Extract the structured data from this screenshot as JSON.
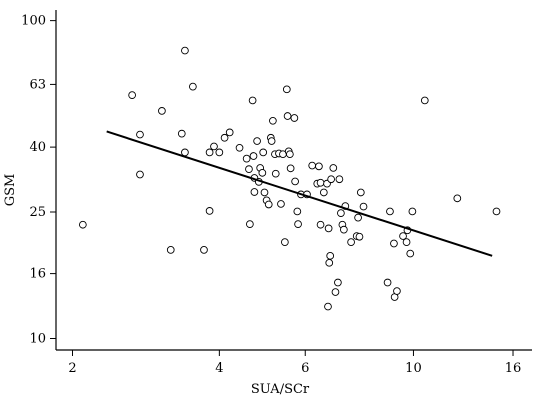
{
  "chart_data": {
    "type": "scatter",
    "xlabel": "SUA/SCr",
    "ylabel": "GSM",
    "x_scale": "log",
    "y_scale": "log",
    "xlim": [
      1.85,
      17.5
    ],
    "ylim": [
      9.2,
      108
    ],
    "x_ticks": [
      2,
      4,
      6,
      10,
      16
    ],
    "x_tick_labels": [
      "2",
      "4",
      "6",
      "10",
      "16"
    ],
    "y_ticks": [
      10,
      16,
      25,
      40,
      63,
      100
    ],
    "y_tick_labels": [
      "10",
      "16",
      "25",
      "40",
      "63",
      "100"
    ],
    "grid": false,
    "legend": "none",
    "series": [
      {
        "points": [
          [
            2.1,
            22.8
          ],
          [
            2.65,
            58.3
          ],
          [
            2.75,
            43.8
          ],
          [
            2.75,
            32.8
          ],
          [
            3.05,
            52.0
          ],
          [
            3.18,
            19.0
          ],
          [
            3.35,
            44.1
          ],
          [
            3.4,
            80.5
          ],
          [
            3.4,
            38.5
          ],
          [
            3.53,
            62.0
          ],
          [
            3.72,
            19.0
          ],
          [
            3.82,
            38.5
          ],
          [
            3.82,
            25.2
          ],
          [
            3.9,
            40.2
          ],
          [
            4.0,
            38.5
          ],
          [
            4.1,
            42.8
          ],
          [
            4.2,
            44.5
          ],
          [
            4.4,
            39.8
          ],
          [
            4.55,
            36.8
          ],
          [
            4.6,
            34.1
          ],
          [
            4.62,
            22.9
          ],
          [
            4.68,
            56.1
          ],
          [
            4.7,
            37.5
          ],
          [
            4.72,
            32.0
          ],
          [
            4.72,
            28.9
          ],
          [
            4.78,
            41.8
          ],
          [
            4.82,
            31.1
          ],
          [
            4.85,
            34.4
          ],
          [
            4.9,
            33.2
          ],
          [
            4.92,
            38.5
          ],
          [
            4.95,
            28.8
          ],
          [
            5.0,
            27.2
          ],
          [
            5.05,
            26.4
          ],
          [
            5.1,
            42.8
          ],
          [
            5.12,
            41.8
          ],
          [
            5.15,
            48.4
          ],
          [
            5.2,
            38.0
          ],
          [
            5.22,
            33.0
          ],
          [
            5.3,
            38.2
          ],
          [
            5.35,
            26.5
          ],
          [
            5.4,
            38.0
          ],
          [
            5.45,
            20.1
          ],
          [
            5.5,
            60.8
          ],
          [
            5.52,
            50.1
          ],
          [
            5.55,
            38.8
          ],
          [
            5.58,
            38.0
          ],
          [
            5.6,
            34.3
          ],
          [
            5.7,
            49.4
          ],
          [
            5.72,
            31.2
          ],
          [
            5.78,
            25.1
          ],
          [
            5.8,
            22.9
          ],
          [
            5.88,
            28.4
          ],
          [
            6.05,
            28.4
          ],
          [
            6.2,
            35.0
          ],
          [
            6.35,
            30.7
          ],
          [
            6.4,
            34.8
          ],
          [
            6.45,
            30.9
          ],
          [
            6.45,
            22.8
          ],
          [
            6.55,
            28.8
          ],
          [
            6.65,
            30.7
          ],
          [
            6.68,
            12.6
          ],
          [
            6.7,
            22.2
          ],
          [
            6.72,
            17.3
          ],
          [
            6.75,
            18.2
          ],
          [
            6.78,
            31.7
          ],
          [
            6.85,
            34.4
          ],
          [
            6.92,
            14.0
          ],
          [
            7.0,
            15.0
          ],
          [
            7.05,
            31.7
          ],
          [
            7.1,
            24.8
          ],
          [
            7.15,
            22.8
          ],
          [
            7.2,
            22.0
          ],
          [
            7.25,
            26.1
          ],
          [
            7.45,
            20.1
          ],
          [
            7.65,
            21.0
          ],
          [
            7.7,
            24.0
          ],
          [
            7.75,
            20.9
          ],
          [
            7.8,
            28.8
          ],
          [
            7.9,
            26.0
          ],
          [
            8.85,
            15.0
          ],
          [
            8.95,
            25.1
          ],
          [
            9.12,
            19.9
          ],
          [
            9.15,
            13.5
          ],
          [
            9.25,
            14.1
          ],
          [
            9.52,
            21.0
          ],
          [
            9.68,
            20.1
          ],
          [
            9.72,
            21.9
          ],
          [
            9.85,
            18.5
          ],
          [
            9.95,
            25.1
          ],
          [
            10.55,
            56.1
          ],
          [
            12.3,
            27.6
          ],
          [
            14.8,
            25.1
          ]
        ]
      }
    ],
    "regression_line": {
      "x": [
        2.35,
        14.5
      ],
      "y": [
        44.8,
        18.2
      ]
    }
  }
}
